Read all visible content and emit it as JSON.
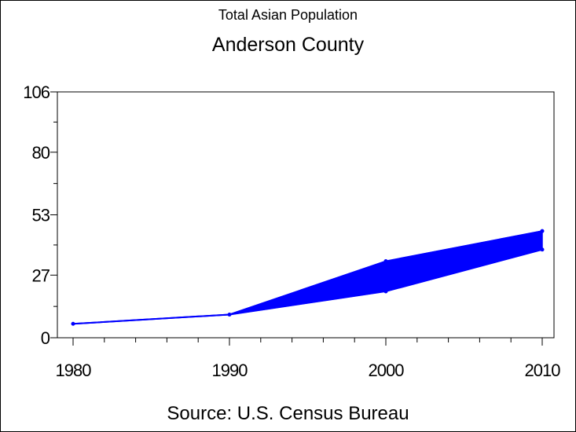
{
  "header": {
    "subtitle": "Total Asian Population",
    "title": "Anderson County"
  },
  "footer": {
    "source": "Source: U.S. Census Bureau"
  },
  "chart_data": {
    "type": "area",
    "title": "Anderson County",
    "subtitle": "Total Asian Population",
    "xlabel": "",
    "ylabel": "",
    "x": [
      1980,
      1990,
      2000,
      2010
    ],
    "x_tick_labels": [
      "1980",
      "1990",
      "2000",
      "2010"
    ],
    "y_tick_values": [
      0,
      27,
      53,
      80,
      106
    ],
    "y_tick_labels": [
      "0",
      "27",
      "53",
      "80",
      "106"
    ],
    "ylim": [
      0,
      106
    ],
    "xlim": [
      1980,
      2010
    ],
    "band": {
      "upper": [
        6,
        10,
        33,
        46
      ],
      "lower": [
        6,
        10,
        20,
        38
      ]
    },
    "grid": false,
    "legend": "none",
    "colors": {
      "series": "#0000ff",
      "axis": "#000000"
    }
  }
}
